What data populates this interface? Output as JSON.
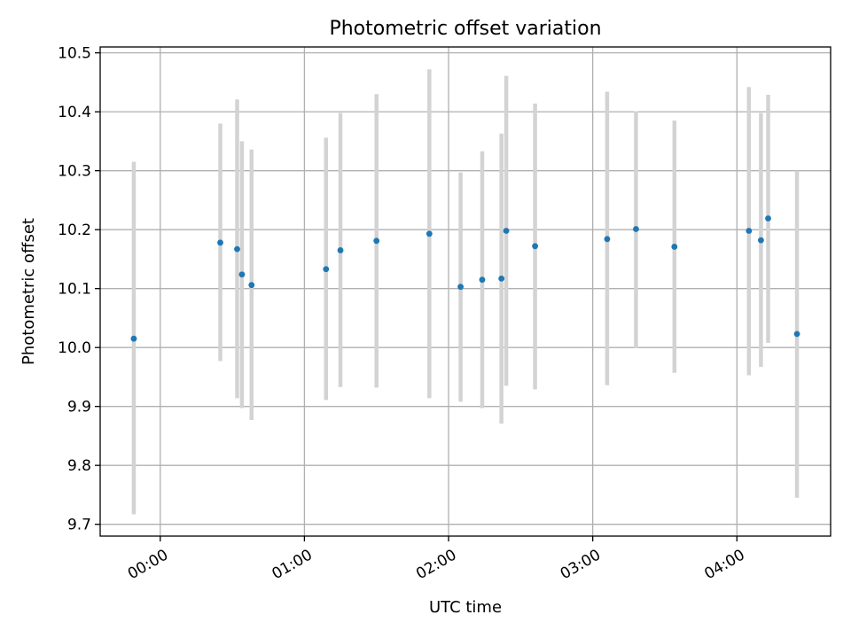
{
  "chart_data": {
    "type": "scatter",
    "title": "Photometric offset variation",
    "xlabel": "UTC time",
    "ylabel": "Photometric offset",
    "xlim": [
      "23:35",
      "04:39"
    ],
    "ylim": [
      9.68,
      10.51
    ],
    "x_ticks": [
      "00:00",
      "01:00",
      "02:00",
      "03:00",
      "04:00"
    ],
    "y_ticks": [
      "9.7",
      "9.8",
      "9.9",
      "10.0",
      "10.1",
      "10.2",
      "10.3",
      "10.4",
      "10.5"
    ],
    "grid": true,
    "marker_color": "#1f77b4",
    "errorbar_color": "#d3d3d3",
    "points": [
      {
        "x": "23:49",
        "y": 10.015,
        "err_low": 9.717,
        "err_high": 10.315
      },
      {
        "x": "00:25",
        "y": 10.178,
        "err_low": 9.977,
        "err_high": 10.38
      },
      {
        "x": "00:32",
        "y": 10.167,
        "err_low": 9.914,
        "err_high": 10.421
      },
      {
        "x": "00:34",
        "y": 10.124,
        "err_low": 9.897,
        "err_high": 10.35
      },
      {
        "x": "00:38",
        "y": 10.106,
        "err_low": 9.877,
        "err_high": 10.336
      },
      {
        "x": "01:09",
        "y": 10.133,
        "err_low": 9.911,
        "err_high": 10.356
      },
      {
        "x": "01:15",
        "y": 10.165,
        "err_low": 9.933,
        "err_high": 10.398
      },
      {
        "x": "01:30",
        "y": 10.181,
        "err_low": 9.932,
        "err_high": 10.43
      },
      {
        "x": "01:52",
        "y": 10.193,
        "err_low": 9.914,
        "err_high": 10.472
      },
      {
        "x": "02:05",
        "y": 10.103,
        "err_low": 9.908,
        "err_high": 10.297
      },
      {
        "x": "02:14",
        "y": 10.115,
        "err_low": 9.897,
        "err_high": 10.333
      },
      {
        "x": "02:22",
        "y": 10.117,
        "err_low": 9.871,
        "err_high": 10.363
      },
      {
        "x": "02:24",
        "y": 10.198,
        "err_low": 9.935,
        "err_high": 10.461
      },
      {
        "x": "02:36",
        "y": 10.172,
        "err_low": 9.929,
        "err_high": 10.414
      },
      {
        "x": "03:06",
        "y": 10.184,
        "err_low": 9.936,
        "err_high": 10.434
      },
      {
        "x": "03:18",
        "y": 10.201,
        "err_low": 9.999,
        "err_high": 10.401
      },
      {
        "x": "03:34",
        "y": 10.171,
        "err_low": 9.957,
        "err_high": 10.385
      },
      {
        "x": "04:05",
        "y": 10.198,
        "err_low": 9.953,
        "err_high": 10.442
      },
      {
        "x": "04:10",
        "y": 10.182,
        "err_low": 9.967,
        "err_high": 10.398
      },
      {
        "x": "04:13",
        "y": 10.219,
        "err_low": 10.008,
        "err_high": 10.429
      },
      {
        "x": "04:25",
        "y": 10.023,
        "err_low": 9.745,
        "err_high": 10.3
      }
    ]
  }
}
